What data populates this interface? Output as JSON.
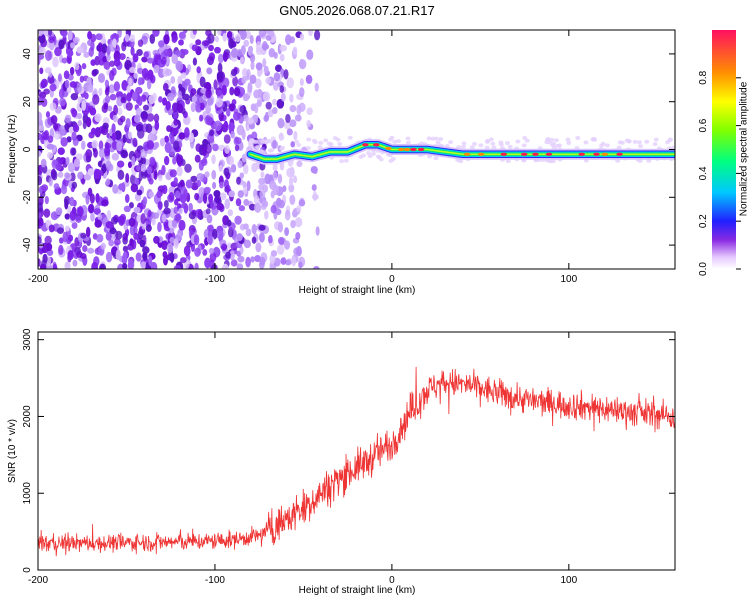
{
  "chart_data": [
    {
      "type": "heatmap",
      "title": "GN05.2026.068.07.21.R17",
      "xlabel": "Height of straight line (km)",
      "ylabel": "Frequency (Hz)",
      "xlim": [
        -200,
        160
      ],
      "ylim": [
        -50,
        50
      ],
      "xticks": [
        -200,
        -100,
        0,
        100
      ],
      "yticks": [
        -40,
        -20,
        0,
        20,
        40
      ],
      "colorbar": {
        "label": "Normalized spectral amplitude",
        "range": [
          0,
          1
        ],
        "ticks": [
          "0.0",
          "0.2",
          "0.4",
          "0.6",
          "0.8"
        ]
      },
      "signal_track": {
        "x": [
          -80,
          -72,
          -65,
          -55,
          -45,
          -35,
          -25,
          -15,
          -8,
          0,
          10,
          20,
          30,
          40,
          60,
          80,
          100,
          120,
          140,
          160
        ],
        "freq": [
          -2,
          -4,
          -4,
          -2,
          -3,
          -1,
          -1,
          2,
          2,
          0,
          0,
          0,
          -1,
          -2,
          -2,
          -2,
          -2,
          -2,
          -2,
          -2
        ]
      },
      "noise_region": {
        "x_from": -200,
        "x_to": -80
      }
    },
    {
      "type": "line",
      "xlabel": "Height of straight line (km)",
      "ylabel": "SNR (10 * v/v)",
      "xlim": [
        -200,
        160
      ],
      "ylim": [
        0,
        3100
      ],
      "xticks": [
        -200,
        -100,
        0,
        100
      ],
      "yticks": [
        0,
        1000,
        2000,
        3000
      ],
      "series": [
        {
          "name": "SNR",
          "color": "#ef3434",
          "x": [
            -200,
            -170,
            -140,
            -110,
            -90,
            -75,
            -60,
            -45,
            -30,
            -15,
            0,
            10,
            20,
            30,
            45,
            60,
            80,
            100,
            120,
            140,
            160
          ],
          "values": [
            350,
            350,
            360,
            370,
            390,
            450,
            650,
            900,
            1200,
            1400,
            1650,
            2050,
            2350,
            2450,
            2400,
            2300,
            2200,
            2150,
            2100,
            2050,
            2000
          ]
        }
      ]
    }
  ]
}
